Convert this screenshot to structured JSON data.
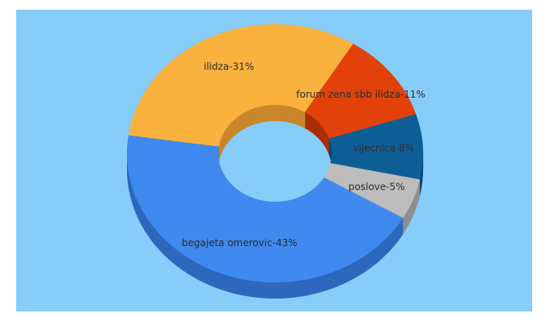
{
  "chart_data": {
    "type": "donut3d",
    "values": [
      31,
      11,
      8,
      5,
      43
    ],
    "value_labels": [
      "ilidza-31%",
      "forum zena sbb ilidza-11%",
      "vijecnica-8%",
      "poslove-5%",
      "begajeta omerovic-43%"
    ],
    "colors": [
      "#f9b23e",
      "#e2420a",
      "#0e5e96",
      "#bdbdbd",
      "#3f89ef"
    ],
    "side_colors": [
      "#c9862a",
      "#a82f06",
      "#0a466f",
      "#8f8f8f",
      "#2d68bd"
    ],
    "background": "#87cdf9"
  }
}
